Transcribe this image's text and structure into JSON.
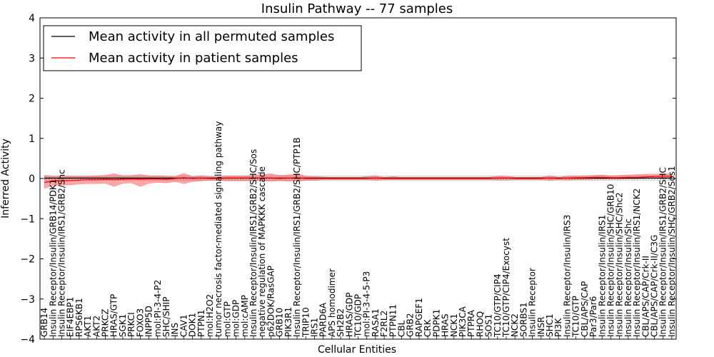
{
  "chart_data": {
    "type": "line",
    "title": "Insulin Pathway -- 77 samples",
    "xlabel": "Cellular Entities",
    "ylabel": "Inferred Activity",
    "ylim": [
      -4,
      4
    ],
    "yticks": [
      -4,
      -3,
      -2,
      -1,
      0,
      1,
      2,
      3,
      4
    ],
    "ytick_labels": [
      "−4",
      "−3",
      "−2",
      "−1",
      "0",
      "1",
      "2",
      "3",
      "4"
    ],
    "legend_position": "top-left",
    "categories": [
      "GRB14",
      "Insulin Receptor/Insulin/GRB14/PDK1",
      "Insulin Receptor/Insulin/IRS1/GRB2/Shc",
      "EIF4EBP1",
      "RPS6KB1",
      "AKT1",
      "AKT2",
      "PRKCZ",
      "HRAS/GTP",
      "SGK1",
      "PRKCI",
      "FOXO3",
      "INPP5D",
      "mol:PI-3-4-P2",
      "SHC/SHIP",
      "INS",
      "CAV1",
      "DOK1",
      "PTPN1",
      "mol:H2O2",
      "tumor necrosis factor-mediated signaling pathway",
      "mol:GTP",
      "mol:GDP",
      "mol:cAMP",
      "Insulin Receptor/Insulin/IRS1/GRB2/SHC/Sos",
      "negative regulation of MAPKKK cascade",
      "p62DOK/RasGAP",
      "GRB10",
      "PIK3R1",
      "Insulin Receptor/Insulin/IRS1/GRB2/SHC/PTP1B",
      "TRIP10",
      "IRS1",
      "PARD6A",
      "APS homodimer",
      "SH2B2",
      "HRAS/GDP",
      "TC10/GDP",
      "mol:PI-3-4-5-P3",
      "RASA1",
      "F2RL2",
      "PTPN11",
      "CBL",
      "GRB2",
      "RAPGEF1",
      "CRK",
      "PDPK1",
      "HRAS",
      "NCK1",
      "PIK3CA",
      "PTPRA",
      "RHOQ",
      "SOS1",
      "TC10/GTP/CIP4",
      "TC10/GTP/CIP4/Exocyst",
      "NCK2",
      "SORBS1",
      "Insulin Receptor",
      "INSR",
      "SHC1",
      "PI3K",
      "Insulin Receptor/Insulin/IRS3",
      "TC10/GTP",
      "CBL/APS/CAP",
      "Par3/Par6",
      "Insulin Receptor/Insulin/IRS1",
      "Insulin Receptor/Insulin/SHC/GRB10",
      "Insulin Receptor/Insulin/SHC/Shc2",
      "Insulin Receptor/Insulin/Shc",
      "Insulin Receptor/Insulin/IRS1/NCK2",
      "CBL/APS/CAP/Crk-II",
      "CBL/APS/CAP/Crk-II/C3G",
      "Insulin Receptor/Insulin/IRS1/GRB2/SHC",
      "Insulin Receptor/Insulin/SHC/GRB2/Sos1"
    ],
    "series": [
      {
        "name": "Mean activity in all permuted samples",
        "color": "#000000",
        "values": [
          0.01,
          0.01,
          0.01,
          0.01,
          0.01,
          0.01,
          0.01,
          0.01,
          0.01,
          0.01,
          0.01,
          0.01,
          0.01,
          0.01,
          0.01,
          0.01,
          0.01,
          0.01,
          0.01,
          0.01,
          0.01,
          0.01,
          0.01,
          0.01,
          0.01,
          0.01,
          0.01,
          0.01,
          0.01,
          0.01,
          0.01,
          0.01,
          0.01,
          0.01,
          0.01,
          0.01,
          0.01,
          0.01,
          0.01,
          0.01,
          0.01,
          0.01,
          0.01,
          0.01,
          0.01,
          0.01,
          0.01,
          0.01,
          0.01,
          0.01,
          0.01,
          0.01,
          0.01,
          0.01,
          0.01,
          0.01,
          0.01,
          0.01,
          0.01,
          0.01,
          0.01,
          0.01,
          0.01,
          0.01,
          0.01,
          0.01,
          0.01,
          0.01,
          0.01,
          0.01,
          0.01,
          0.01,
          0.01
        ],
        "lower": [
          -0.04,
          -0.04,
          -0.04,
          -0.04,
          -0.04,
          -0.04,
          -0.04,
          -0.04,
          -0.04,
          -0.04,
          -0.04,
          -0.04,
          -0.04,
          -0.04,
          -0.04,
          -0.04,
          -0.04,
          -0.04,
          -0.04,
          -0.04,
          -0.04,
          -0.04,
          -0.04,
          -0.04,
          -0.04,
          -0.04,
          -0.04,
          -0.04,
          -0.04,
          -0.04,
          -0.04,
          -0.04,
          -0.04,
          -0.04,
          -0.04,
          -0.04,
          -0.04,
          -0.04,
          -0.04,
          -0.04,
          -0.04,
          -0.04,
          -0.04,
          -0.04,
          -0.04,
          -0.04,
          -0.04,
          -0.04,
          -0.04,
          -0.04,
          -0.04,
          -0.04,
          -0.04,
          -0.04,
          -0.04,
          -0.04,
          -0.04,
          -0.04,
          -0.04,
          -0.04,
          -0.04,
          -0.04,
          -0.04,
          -0.04,
          -0.04,
          -0.04,
          -0.04,
          -0.04,
          -0.04,
          -0.04,
          -0.04,
          -0.04,
          -0.04
        ],
        "upper": [
          0.06,
          0.06,
          0.06,
          0.06,
          0.06,
          0.06,
          0.06,
          0.06,
          0.06,
          0.06,
          0.06,
          0.06,
          0.06,
          0.06,
          0.06,
          0.06,
          0.06,
          0.06,
          0.06,
          0.06,
          0.06,
          0.06,
          0.06,
          0.06,
          0.06,
          0.06,
          0.06,
          0.06,
          0.06,
          0.06,
          0.06,
          0.06,
          0.06,
          0.06,
          0.06,
          0.06,
          0.06,
          0.06,
          0.06,
          0.06,
          0.06,
          0.06,
          0.06,
          0.06,
          0.06,
          0.06,
          0.06,
          0.06,
          0.06,
          0.06,
          0.06,
          0.06,
          0.06,
          0.06,
          0.06,
          0.06,
          0.06,
          0.06,
          0.06,
          0.06,
          0.06,
          0.06,
          0.06,
          0.06,
          0.06,
          0.06,
          0.06,
          0.06,
          0.06,
          0.06,
          0.06,
          0.06,
          0.06
        ]
      },
      {
        "name": "Mean activity in patient samples",
        "color": "#ff0000",
        "values": [
          -0.1,
          -0.06,
          -0.06,
          -0.05,
          -0.04,
          -0.03,
          -0.03,
          -0.02,
          -0.03,
          -0.02,
          -0.01,
          -0.02,
          -0.01,
          -0.01,
          -0.02,
          0.0,
          0.02,
          0.0,
          0.01,
          0.0,
          0.0,
          0.01,
          0.01,
          0.01,
          0.01,
          0.01,
          0.01,
          0.0,
          0.01,
          0.02,
          0.0,
          0.0,
          0.0,
          0.0,
          0.0,
          0.0,
          0.0,
          0.0,
          0.01,
          0.0,
          0.0,
          0.0,
          0.0,
          0.0,
          0.0,
          0.0,
          0.0,
          0.0,
          0.0,
          0.0,
          0.0,
          0.0,
          0.01,
          0.01,
          0.0,
          0.0,
          0.0,
          0.0,
          0.01,
          0.0,
          0.01,
          0.02,
          0.02,
          0.03,
          0.03,
          0.02,
          0.02,
          0.03,
          0.03,
          0.04,
          0.05,
          0.06,
          0.06
        ],
        "lower": [
          -0.25,
          -0.17,
          -0.17,
          -0.16,
          -0.14,
          -0.13,
          -0.13,
          -0.12,
          -0.2,
          -0.12,
          -0.11,
          -0.2,
          -0.12,
          -0.1,
          -0.11,
          -0.08,
          -0.13,
          -0.08,
          -0.06,
          -0.05,
          -0.05,
          -0.06,
          -0.06,
          -0.06,
          -0.06,
          -0.06,
          -0.07,
          -0.06,
          -0.07,
          -0.07,
          -0.05,
          -0.05,
          -0.03,
          -0.03,
          -0.03,
          -0.03,
          -0.03,
          -0.03,
          -0.05,
          -0.03,
          -0.03,
          -0.03,
          -0.03,
          -0.03,
          -0.03,
          -0.03,
          -0.03,
          -0.03,
          -0.03,
          -0.03,
          -0.03,
          -0.03,
          -0.04,
          -0.04,
          -0.03,
          -0.03,
          -0.03,
          -0.03,
          -0.05,
          -0.03,
          -0.04,
          -0.03,
          -0.03,
          -0.02,
          -0.02,
          -0.02,
          -0.02,
          -0.01,
          -0.01,
          0.0,
          0.0,
          0.0,
          0.0
        ],
        "upper": [
          0.08,
          0.06,
          0.06,
          0.06,
          0.06,
          0.06,
          0.07,
          0.08,
          0.12,
          0.07,
          0.08,
          0.1,
          0.07,
          0.07,
          0.06,
          0.05,
          0.13,
          0.05,
          0.07,
          0.05,
          0.05,
          0.07,
          0.07,
          0.07,
          0.08,
          0.1,
          0.12,
          0.08,
          0.09,
          0.12,
          0.06,
          0.05,
          0.04,
          0.03,
          0.03,
          0.03,
          0.03,
          0.05,
          0.07,
          0.03,
          0.05,
          0.03,
          0.03,
          0.03,
          0.03,
          0.03,
          0.03,
          0.03,
          0.03,
          0.03,
          0.03,
          0.03,
          0.06,
          0.06,
          0.03,
          0.03,
          0.03,
          0.03,
          0.07,
          0.03,
          0.06,
          0.07,
          0.07,
          0.08,
          0.09,
          0.07,
          0.08,
          0.09,
          0.1,
          0.11,
          0.11,
          0.12,
          0.12
        ]
      }
    ]
  }
}
